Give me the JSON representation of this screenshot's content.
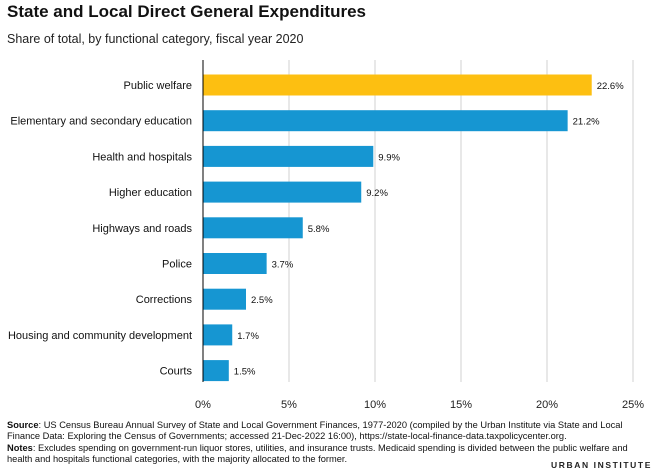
{
  "title": "State and Local Direct General Expenditures",
  "subtitle": "Share of total, by functional category, fiscal year 2020",
  "chart_data": {
    "type": "bar",
    "orientation": "horizontal",
    "title": "State and Local Direct General Expenditures",
    "subtitle": "Share of total, by functional category, fiscal year 2020",
    "categories": [
      "Public welfare",
      "Elementary and secondary education",
      "Health and hospitals",
      "Higher education",
      "Highways and roads",
      "Police",
      "Corrections",
      "Housing and community development",
      "Courts"
    ],
    "values": [
      22.6,
      21.2,
      9.9,
      9.2,
      5.8,
      3.7,
      2.5,
      1.7,
      1.5
    ],
    "value_labels": [
      "22.6%",
      "21.2%",
      "9.9%",
      "9.2%",
      "5.8%",
      "3.7%",
      "2.5%",
      "1.7%",
      "1.5%"
    ],
    "highlight_index": 0,
    "highlight_color": "#fdbf11",
    "bar_color": "#1696d2",
    "xlim": [
      0,
      25
    ],
    "xticks": [
      0,
      5,
      10,
      15,
      20,
      25
    ],
    "xtick_labels": [
      "0%",
      "5%",
      "10%",
      "15%",
      "20%",
      "25%"
    ],
    "grid": true,
    "legend": "none"
  },
  "notes": {
    "source_label": "Source",
    "source_text": ": US Census Bureau Annual Survey of State and Local Government Finances, 1977-2020 (compiled by the Urban Institute via State and Local Finance Data: Exploring the Census of Governments; accessed 21-Dec-2022 16:00), https://state-local-finance-data.taxpolicycenter.org.",
    "notes_label": "Notes",
    "notes_text": ": Excludes spending on government-run liquor stores, utilities, and insurance trusts. Medicaid spending is divided between the public welfare and health and hospitals functional categories, with the majority allocated to the former."
  },
  "logo": "URBAN INSTITUTE"
}
